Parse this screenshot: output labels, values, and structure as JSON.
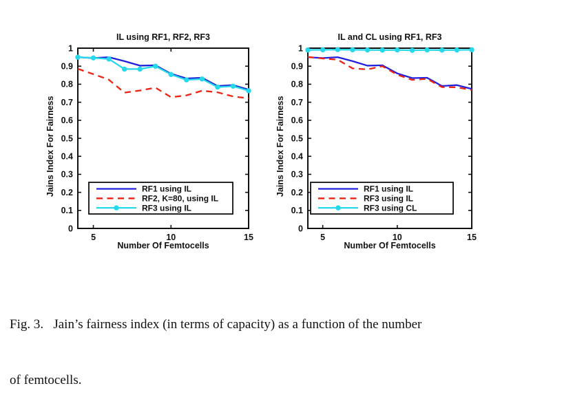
{
  "colors": {
    "blue": "#2020dd",
    "red": "#ee2211",
    "cyan": "#25d9ea",
    "axis": "#111111",
    "background": "#ffffff"
  },
  "caption": {
    "line1": "Fig. 3.   Jain’s fairness index (in terms of capacity) as a function of the number",
    "line2": "of femtocells."
  },
  "chart_data": [
    {
      "type": "line",
      "title": "IL using RF1, RF2, RF3",
      "xlabel": "Number Of Femtocells",
      "ylabel": "Jains Index For Fairness",
      "xlim": [
        4,
        15
      ],
      "ylim": [
        0,
        1
      ],
      "x_ticks": [
        5,
        10,
        15
      ],
      "x_tick_labels": [
        "5",
        "10",
        "15"
      ],
      "y_ticks": [
        0,
        0.1,
        0.2,
        0.3,
        0.4,
        0.5,
        0.6,
        0.7,
        0.8,
        0.9,
        1
      ],
      "y_tick_labels": [
        "0",
        "0.1",
        "0.2",
        "0.3",
        "0.4",
        "0.5",
        "0.6",
        "0.7",
        "0.8",
        "0.9",
        "1"
      ],
      "grid": false,
      "legend_position": "lower-left",
      "x": [
        4,
        5,
        6,
        7,
        8,
        9,
        10,
        11,
        12,
        13,
        14,
        15
      ],
      "series": [
        {
          "name": "RF1 using IL",
          "color_key": "blue",
          "line": "solid",
          "marker": "none",
          "values": [
            0.95,
            0.945,
            0.95,
            0.928,
            0.903,
            0.905,
            0.858,
            0.832,
            0.836,
            0.79,
            0.795,
            0.77
          ]
        },
        {
          "name": "RF2, K=80, using IL",
          "color_key": "red",
          "line": "dashed",
          "marker": "none",
          "values": [
            0.885,
            0.856,
            0.825,
            0.753,
            0.765,
            0.781,
            0.728,
            0.738,
            0.764,
            0.755,
            0.732,
            0.722
          ]
        },
        {
          "name": "RF3 using IL",
          "color_key": "cyan",
          "line": "solid",
          "marker": "circle",
          "values": [
            0.95,
            0.946,
            0.94,
            0.884,
            0.884,
            0.9,
            0.854,
            0.824,
            0.829,
            0.784,
            0.789,
            0.764
          ]
        }
      ]
    },
    {
      "type": "line",
      "title": "IL and CL using RF1, RF3",
      "xlabel": "Number Of Femtocells",
      "ylabel": "Jains Index For Fairness",
      "xlim": [
        4,
        15
      ],
      "ylim": [
        0,
        1
      ],
      "x_ticks": [
        5,
        10,
        15
      ],
      "x_tick_labels": [
        "5",
        "10",
        "15"
      ],
      "y_ticks": [
        0,
        0.1,
        0.2,
        0.3,
        0.4,
        0.5,
        0.6,
        0.7,
        0.8,
        0.9,
        1
      ],
      "y_tick_labels": [
        "0",
        "0.1",
        "0.2",
        "0.3",
        "0.4",
        "0.5",
        "0.6",
        "0.7",
        "0.8",
        "0.9",
        "1"
      ],
      "grid": false,
      "legend_position": "lower-left",
      "x": [
        4,
        5,
        6,
        7,
        8,
        9,
        10,
        11,
        12,
        13,
        14,
        15
      ],
      "series": [
        {
          "name": "RF1 using IL",
          "color_key": "blue",
          "line": "solid",
          "marker": "none",
          "values": [
            0.95,
            0.945,
            0.95,
            0.928,
            0.903,
            0.905,
            0.86,
            0.834,
            0.836,
            0.79,
            0.795,
            0.774
          ]
        },
        {
          "name": "RF3 using IL",
          "color_key": "red",
          "line": "dashed",
          "marker": "none",
          "values": [
            0.951,
            0.943,
            0.936,
            0.888,
            0.882,
            0.9,
            0.853,
            0.824,
            0.83,
            0.784,
            0.783,
            0.768
          ]
        },
        {
          "name": "RF3 using CL",
          "color_key": "cyan",
          "line": "solid",
          "marker": "circle",
          "values": [
            0.99,
            0.991,
            0.992,
            0.991,
            0.99,
            0.989,
            0.99,
            0.988,
            0.99,
            0.989,
            0.99,
            0.991
          ]
        }
      ]
    }
  ]
}
